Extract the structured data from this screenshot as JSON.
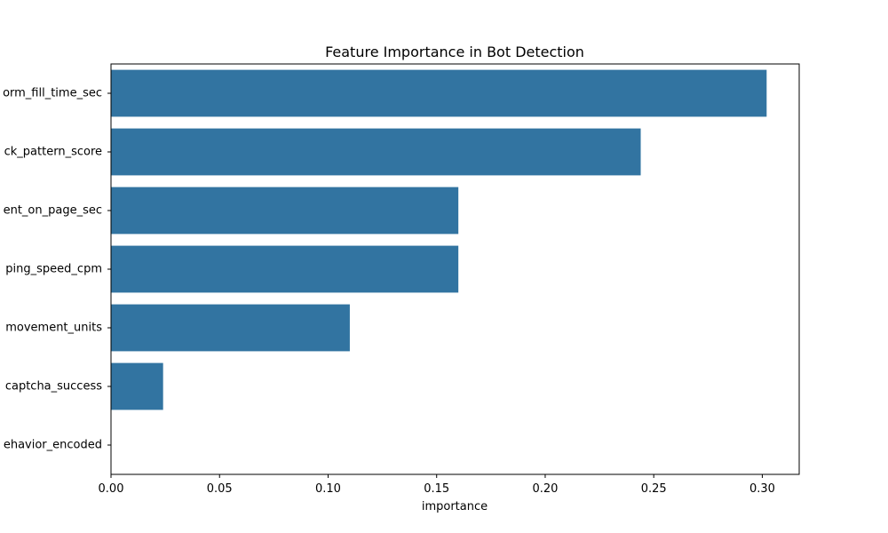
{
  "chart_data": {
    "type": "bar",
    "orientation": "horizontal",
    "title": "Feature Importance in Bot Detection",
    "xlabel": "importance",
    "ylabel": "",
    "xlim": [
      0.0,
      0.317
    ],
    "x_ticks": [
      0.0,
      0.05,
      0.1,
      0.15,
      0.2,
      0.25,
      0.3
    ],
    "x_tick_labels": [
      "0.00",
      "0.05",
      "0.10",
      "0.15",
      "0.20",
      "0.25",
      "0.30"
    ],
    "categories": [
      "form_fill_time_sec",
      "click_pattern_score",
      "time_spent_on_page_sec",
      "typing_speed_cpm",
      "mouse_movement_units",
      "captcha_success",
      "behavior_encoded"
    ],
    "category_labels_visible": [
      "orm_fill_time_sec",
      "ck_pattern_score",
      "ent_on_page_sec",
      "ping_speed_cpm",
      "movement_units",
      "captcha_success",
      "ehavior_encoded"
    ],
    "values": [
      0.302,
      0.244,
      0.16,
      0.16,
      0.11,
      0.024,
      0.0
    ],
    "grid": false,
    "legend": "none",
    "bar_color": "#3274a1"
  }
}
